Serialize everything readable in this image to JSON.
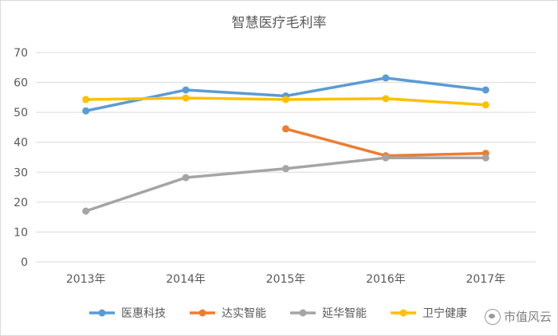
{
  "chart_data": {
    "type": "line",
    "title": "智慧医疗毛利率",
    "categories": [
      "2013年",
      "2014年",
      "2015年",
      "2016年",
      "2017年"
    ],
    "ylim": [
      0,
      70
    ],
    "yticks": [
      0,
      10,
      20,
      30,
      40,
      50,
      60,
      70
    ],
    "grid": true,
    "legend_position": "bottom",
    "series": [
      {
        "name": "医惠科技",
        "color": "#5b9bd5",
        "values": [
          50.5,
          57.5,
          55.5,
          61.5,
          57.5
        ]
      },
      {
        "name": "达实智能",
        "color": "#ed7d31",
        "values": [
          null,
          null,
          44.5,
          35.5,
          36.3
        ]
      },
      {
        "name": "延华智能",
        "color": "#a5a5a5",
        "values": [
          17.0,
          28.2,
          31.2,
          34.8,
          34.8
        ]
      },
      {
        "name": "卫宁健康",
        "color": "#ffc000",
        "values": [
          54.3,
          54.8,
          54.3,
          54.6,
          52.5
        ]
      }
    ]
  },
  "watermark": {
    "text": "市值风云",
    "icon": "wechat-bubble-icon"
  }
}
